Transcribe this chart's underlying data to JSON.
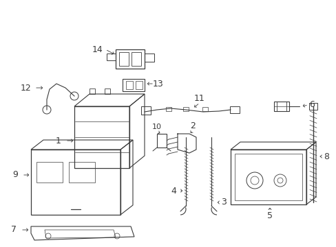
{
  "bg_color": "#ffffff",
  "line_color": "#3a3a3a",
  "fig_width": 4.89,
  "fig_height": 3.6,
  "dpi": 100,
  "font_size": 9,
  "font_size_small": 8
}
